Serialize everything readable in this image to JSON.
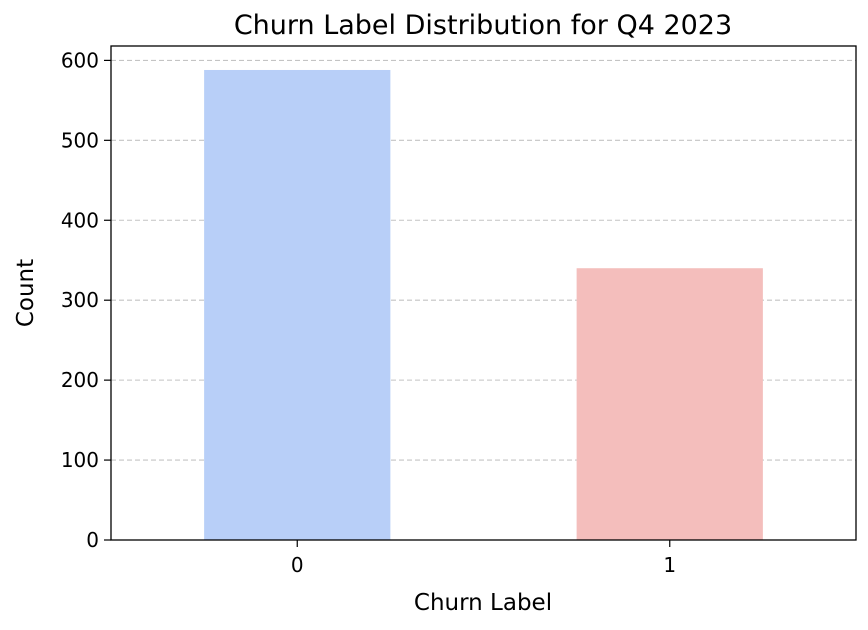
{
  "chart_data": {
    "type": "bar",
    "title": "Churn Label Distribution for Q4 2023",
    "xlabel": "Churn Label",
    "ylabel": "Count",
    "categories": [
      "0",
      "1"
    ],
    "values": [
      588,
      340
    ],
    "bar_colors": [
      "#b8cff8",
      "#f4bebc"
    ],
    "ylim": [
      0,
      618
    ],
    "yticks": [
      0,
      100,
      200,
      300,
      400,
      500,
      600
    ],
    "grid": "y-dashed",
    "legend": "none"
  }
}
